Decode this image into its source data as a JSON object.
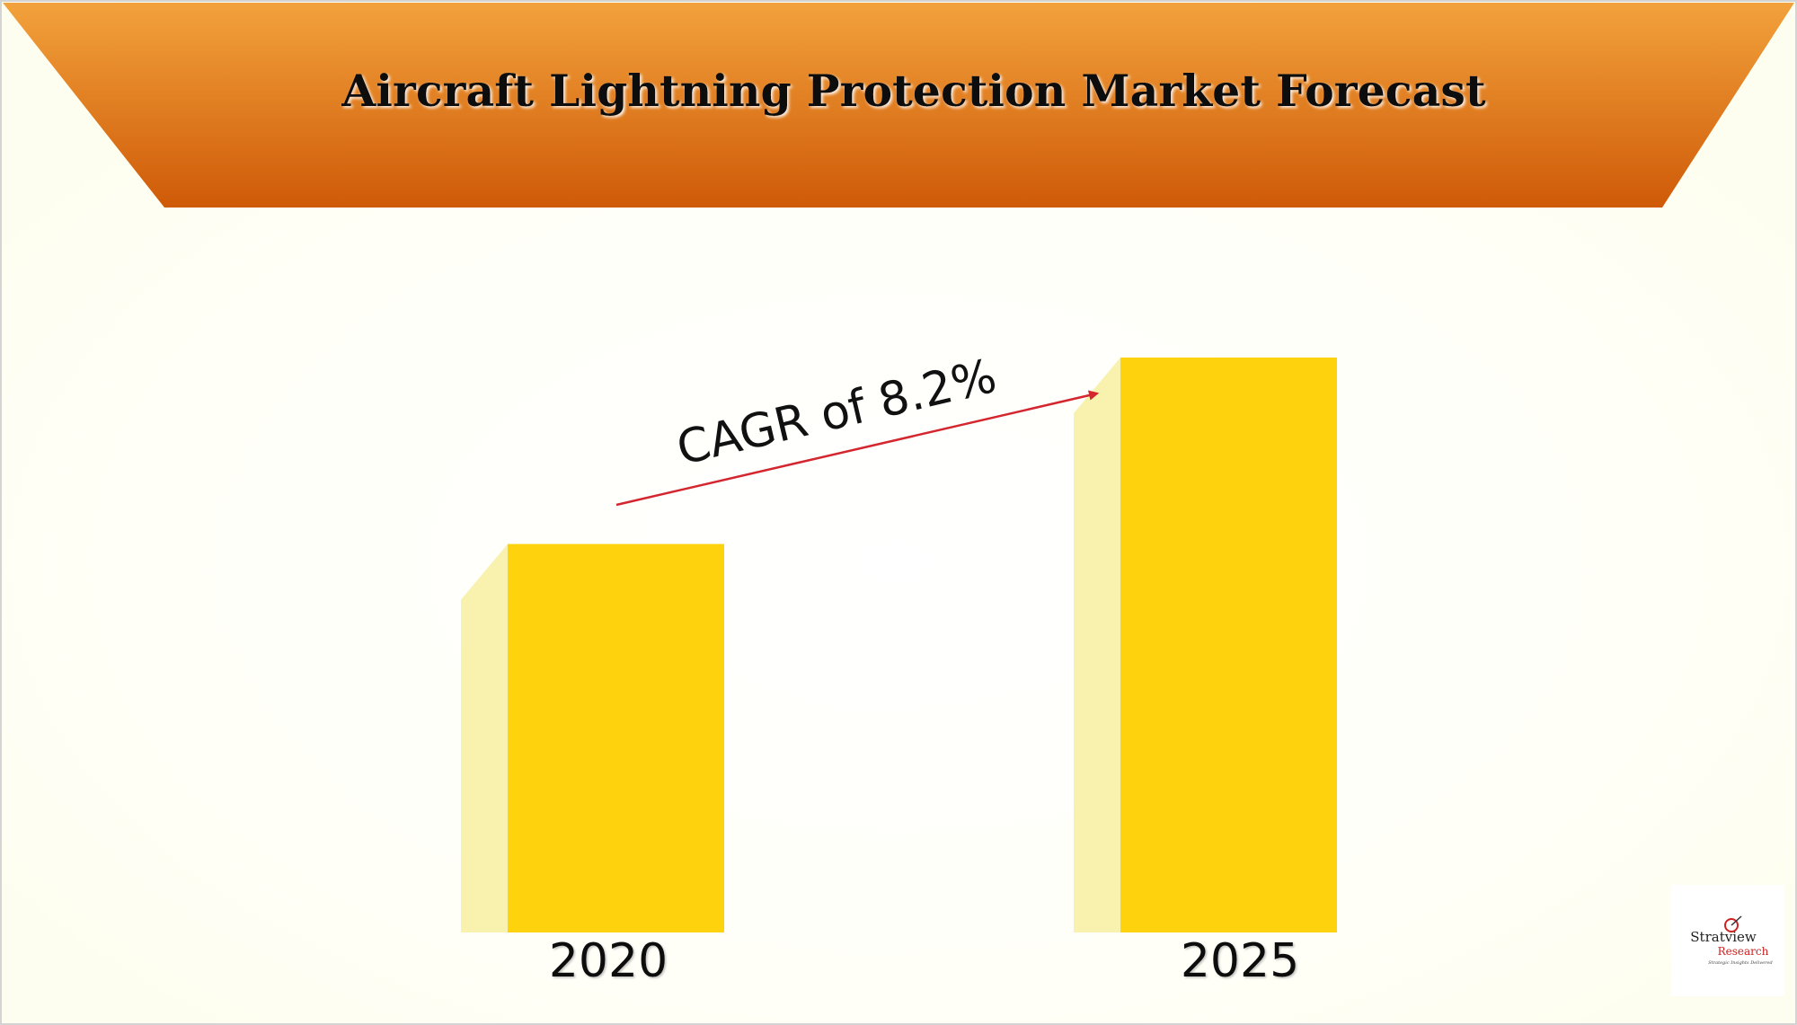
{
  "chart_data": {
    "type": "bar",
    "title": "Aircraft Lightning Protection Market Forecast",
    "categories": [
      "2020",
      "2025"
    ],
    "values": [
      1.0,
      1.48
    ],
    "annotation": "CAGR of 8.2%",
    "xlabel": "",
    "ylabel": "",
    "grid": false,
    "legend": "none"
  },
  "colors": {
    "banner_top": "#f2a23c",
    "banner_bottom": "#cf5a08",
    "bar_front": "#fed20d",
    "bar_side": "#f9f2ae",
    "arrow": "#d4262e",
    "background": "#fffff4"
  },
  "logo": {
    "name": "Stratview",
    "sub": "Research",
    "tagline": "Strategic Insights Delivered"
  }
}
